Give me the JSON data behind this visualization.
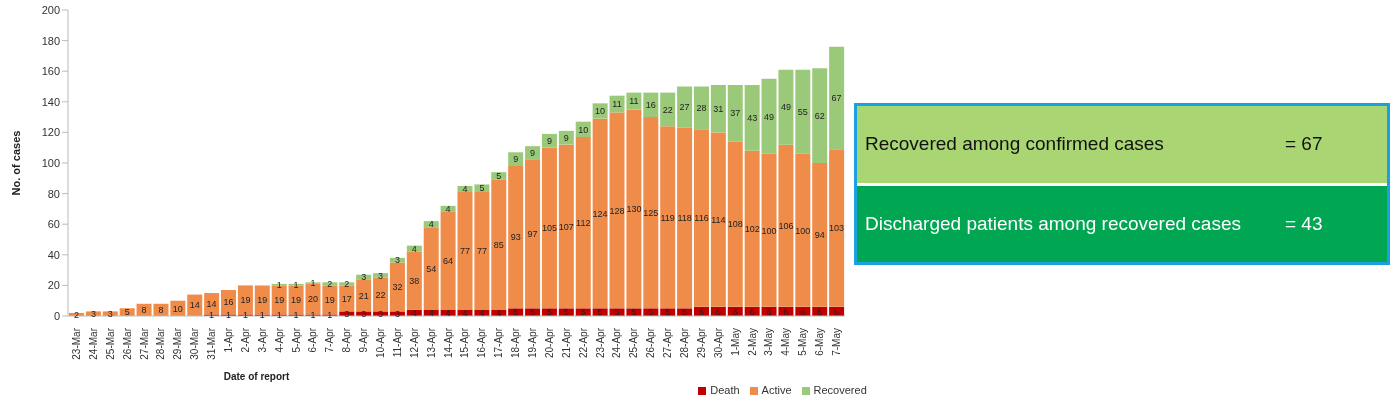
{
  "chart_data": {
    "type": "bar",
    "stacked": true,
    "xlabel": "Date of report",
    "ylabel": "No. of cases",
    "categories": [
      "23-Mar",
      "24-Mar",
      "25-Mar",
      "26-Mar",
      "27-Mar",
      "28-Mar",
      "29-Mar",
      "30-Mar",
      "31-Mar",
      "1-Apr",
      "2-Apr",
      "3-Apr",
      "4-Apr",
      "5-Apr",
      "6-Apr",
      "7-Apr",
      "8-Apr",
      "9-Apr",
      "10-Apr",
      "11-Apr",
      "12-Apr",
      "13-Apr",
      "14-Apr",
      "15-Apr",
      "16-Apr",
      "17-Apr",
      "18-Apr",
      "19-Apr",
      "20-Apr",
      "21-Apr",
      "22-Apr",
      "23-Apr",
      "24-Apr",
      "25-Apr",
      "26-Apr",
      "27-Apr",
      "28-Apr",
      "29-Apr",
      "30-Apr",
      "1-May",
      "2-May",
      "3-May",
      "4-May",
      "5-May",
      "6-May",
      "7-May"
    ],
    "series": [
      {
        "name": "Death",
        "color": "#c00000",
        "values": [
          null,
          null,
          null,
          null,
          null,
          null,
          null,
          null,
          1,
          1,
          1,
          1,
          1,
          1,
          1,
          1,
          3,
          3,
          3,
          3,
          4,
          4,
          4,
          4,
          4,
          4,
          5,
          5,
          5,
          5,
          5,
          5,
          5,
          5,
          5,
          5,
          5,
          6,
          6,
          6,
          6,
          6,
          6,
          6,
          6,
          6
        ]
      },
      {
        "name": "Active",
        "color": "#f08c4a",
        "values": [
          2,
          3,
          3,
          5,
          8,
          8,
          10,
          14,
          14,
          16,
          19,
          19,
          19,
          19,
          20,
          19,
          17,
          21,
          22,
          32,
          38,
          54,
          64,
          77,
          77,
          85,
          93,
          97,
          105,
          107,
          112,
          124,
          128,
          130,
          125,
          119,
          118,
          116,
          114,
          108,
          102,
          100,
          106,
          100,
          94,
          103
        ]
      },
      {
        "name": "Recovered",
        "color": "#9bc97a",
        "values": [
          null,
          null,
          null,
          null,
          null,
          null,
          null,
          null,
          null,
          null,
          null,
          null,
          1,
          1,
          1,
          2,
          2,
          3,
          3,
          3,
          4,
          4,
          4,
          4,
          5,
          5,
          9,
          9,
          9,
          9,
          10,
          10,
          11,
          11,
          16,
          22,
          27,
          28,
          31,
          37,
          43,
          49,
          49,
          55,
          62,
          67
        ]
      }
    ],
    "ylim": [
      0,
      200
    ],
    "yticks": [
      0,
      20,
      40,
      60,
      80,
      100,
      120,
      140,
      160,
      180,
      200
    ],
    "data_labels": true,
    "legend": "bottom",
    "annotations": [
      "Recovered among confirmed cases",
      "= 67",
      "Discharged patients among recovered cases",
      "= 43"
    ]
  }
}
